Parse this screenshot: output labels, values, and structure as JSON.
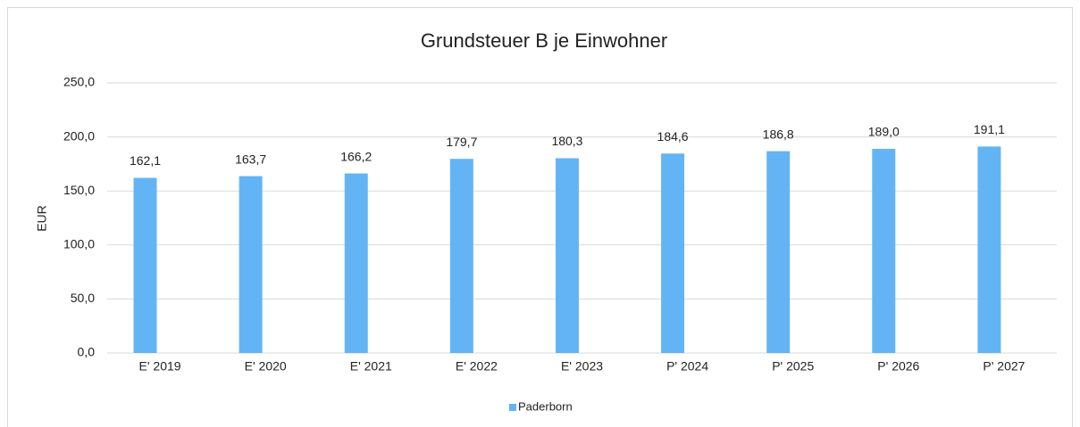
{
  "chart_data": {
    "type": "bar",
    "title": "Grundsteuer B je Einwohner",
    "y_label": "EUR",
    "categories": [
      "E' 2019",
      "E' 2020",
      "E' 2021",
      "E' 2022",
      "E' 2023",
      "P' 2024",
      "P' 2025",
      "P' 2026",
      "P' 2027"
    ],
    "series": [
      {
        "name": "Paderborn",
        "color": "#63b4f5",
        "values": [
          162.1,
          163.7,
          166.2,
          179.7,
          180.3,
          184.6,
          186.8,
          189.0,
          191.1
        ],
        "value_labels": [
          "162,1",
          "163,7",
          "166,2",
          "179,7",
          "180,3",
          "184,6",
          "186,8",
          "189,0",
          "191,1"
        ]
      }
    ],
    "ylim": [
      0,
      250
    ],
    "yticks": [
      {
        "value": 0,
        "label": "0,0"
      },
      {
        "value": 50,
        "label": "50,0"
      },
      {
        "value": 100,
        "label": "100,0"
      },
      {
        "value": 150,
        "label": "150,0"
      },
      {
        "value": 200,
        "label": "200,0"
      },
      {
        "value": 250,
        "label": "250,0"
      }
    ],
    "grid": true,
    "legend": "bottom"
  }
}
